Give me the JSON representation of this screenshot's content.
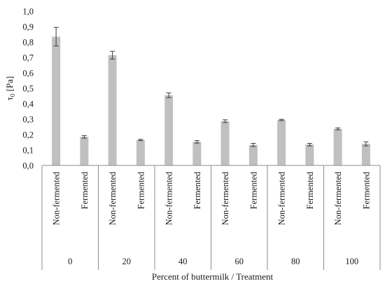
{
  "chart_data": {
    "type": "bar",
    "title": "",
    "ylabel": "τ0 [Pa]",
    "xlabel": "Percent of buttermilk / Treatment",
    "ylim": [
      0,
      1.0
    ],
    "yticks": [
      "0,0",
      "0,1",
      "0,2",
      "0,3",
      "0,4",
      "0,5",
      "0,6",
      "0,7",
      "0,8",
      "0,9",
      "1,0"
    ],
    "ytick_values": [
      0,
      0.1,
      0.2,
      0.3,
      0.4,
      0.5,
      0.6,
      0.7,
      0.8,
      0.9,
      1.0
    ],
    "grid": false,
    "bar_color": "#c0c0c0",
    "groups": [
      {
        "label": "0",
        "bars": [
          {
            "category": "Non-fermented",
            "value": 0.835,
            "error": 0.06
          },
          {
            "category": "Fermented",
            "value": 0.185,
            "error": 0.008
          }
        ]
      },
      {
        "label": "20",
        "bars": [
          {
            "category": "Non-fermented",
            "value": 0.715,
            "error": 0.025
          },
          {
            "category": "Fermented",
            "value": 0.165,
            "error": 0.004
          }
        ]
      },
      {
        "label": "40",
        "bars": [
          {
            "category": "Non-fermented",
            "value": 0.455,
            "error": 0.015
          },
          {
            "category": "Fermented",
            "value": 0.153,
            "error": 0.008
          }
        ]
      },
      {
        "label": "60",
        "bars": [
          {
            "category": "Non-fermented",
            "value": 0.287,
            "error": 0.009
          },
          {
            "category": "Fermented",
            "value": 0.133,
            "error": 0.01
          }
        ]
      },
      {
        "label": "80",
        "bars": [
          {
            "category": "Non-fermented",
            "value": 0.295,
            "error": 0.004
          },
          {
            "category": "Fermented",
            "value": 0.135,
            "error": 0.008
          }
        ]
      },
      {
        "label": "100",
        "bars": [
          {
            "category": "Non-fermented",
            "value": 0.237,
            "error": 0.006
          },
          {
            "category": "Fermented",
            "value": 0.14,
            "error": 0.013
          }
        ]
      }
    ]
  }
}
